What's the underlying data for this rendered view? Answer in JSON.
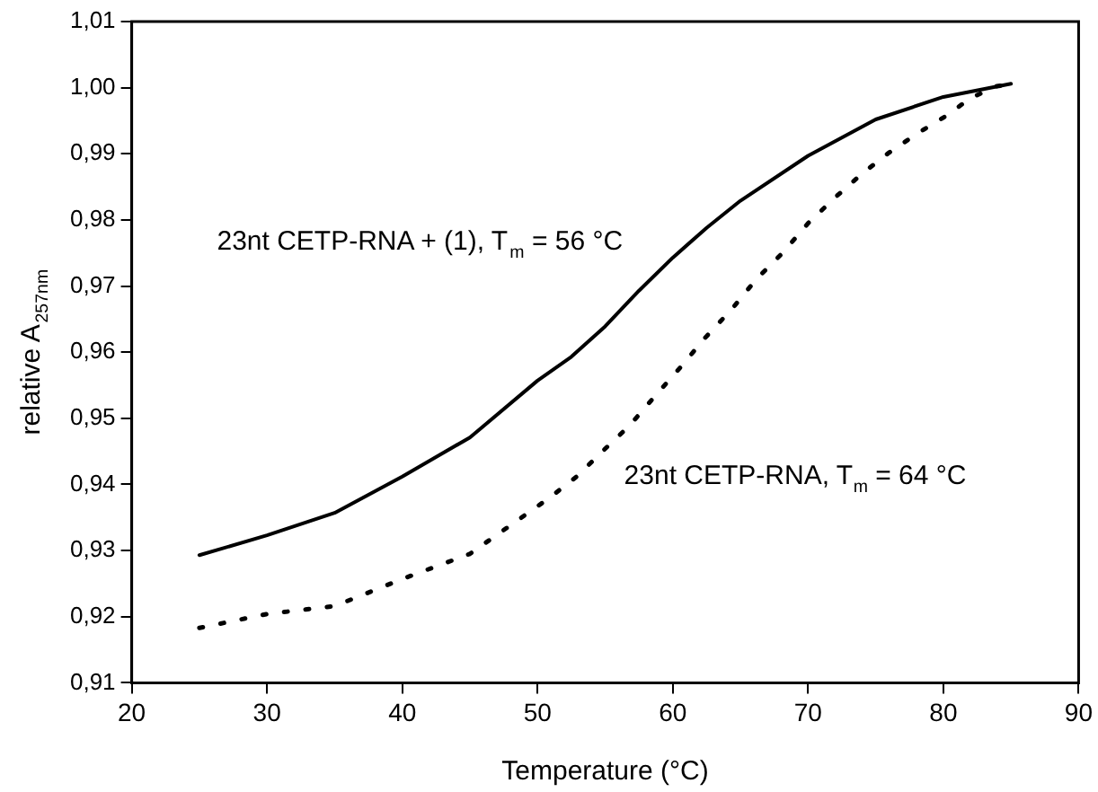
{
  "chart_data": {
    "type": "line",
    "xlabel": "Temperature (°C)",
    "ylabel": "relative A$_{257nm}$",
    "xlim": [
      20,
      90
    ],
    "xticks": [
      20,
      30,
      40,
      50,
      60,
      70,
      80,
      90
    ],
    "ylim": [
      0.91,
      1.01
    ],
    "yticks": [
      {
        "value": 0.91,
        "label": "0,91"
      },
      {
        "value": 0.92,
        "label": "0,92"
      },
      {
        "value": 0.93,
        "label": "0,93"
      },
      {
        "value": 0.94,
        "label": "0,94"
      },
      {
        "value": 0.95,
        "label": "0,95"
      },
      {
        "value": 0.96,
        "label": "0,96"
      },
      {
        "value": 0.97,
        "label": "0,97"
      },
      {
        "value": 0.98,
        "label": "0,98"
      },
      {
        "value": 0.99,
        "label": "0,99"
      },
      {
        "value": 1.0,
        "label": "1,00"
      },
      {
        "value": 1.01,
        "label": "1,01"
      }
    ],
    "grid": false,
    "legend": false,
    "marker": "none",
    "series": [
      {
        "name": "23nt CETP-RNA + (1), T$_{m}$ = 56 °C",
        "color": "#000000",
        "line_style": "solid",
        "x": [
          25,
          30,
          35,
          40,
          45,
          50,
          52.5,
          55,
          57.5,
          60,
          62.5,
          65,
          70,
          75,
          80,
          85
        ],
        "values": [
          0.9293,
          0.9323,
          0.9357,
          0.9412,
          0.9471,
          0.9557,
          0.9593,
          0.9639,
          0.9693,
          0.9743,
          0.9788,
          0.9829,
          0.9897,
          0.9952,
          0.9986,
          1.0006
        ]
      },
      {
        "name": "23nt CETP-RNA, T$_{m}$ = 64 °C",
        "color": "#000000",
        "line_style": "dotted",
        "x": [
          25,
          30,
          35,
          40,
          45,
          50.9,
          52.9,
          54.9,
          56.8,
          58.7,
          60.6,
          62.4,
          64.4,
          66.2,
          68.2,
          70,
          72,
          74,
          76,
          78.1,
          80.1,
          82,
          83.9,
          85
        ],
        "values": [
          0.9183,
          0.9204,
          0.9216,
          0.9257,
          0.9295,
          0.938,
          0.9412,
          0.9452,
          0.9489,
          0.9534,
          0.9578,
          0.9622,
          0.9666,
          0.9711,
          0.9752,
          0.9795,
          0.9834,
          0.987,
          0.9902,
          0.9931,
          0.9956,
          0.9984,
          1.0002,
          1.0005
        ]
      }
    ]
  }
}
